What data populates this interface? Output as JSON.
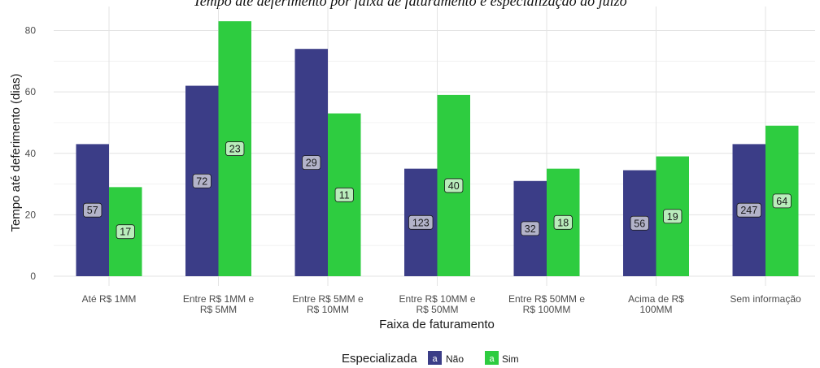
{
  "caption": "Tempo até deferimento por faixa de faturamento e especialização do juízo",
  "chart_data": {
    "type": "bar",
    "xlabel": "Faixa de faturamento",
    "ylabel": "Tempo até deferimento (dias)",
    "ylim": [
      0,
      85
    ],
    "yticks": [
      0,
      20,
      40,
      60,
      80
    ],
    "grid": true,
    "categories": [
      [
        "Até R$ 1MM"
      ],
      [
        "Entre R$ 1MM e",
        "R$ 5MM"
      ],
      [
        "Entre R$ 5MM e",
        "R$ 10MM"
      ],
      [
        "Entre R$ 10MM e",
        "R$ 50MM"
      ],
      [
        "Entre R$ 50MM e",
        "R$ 100MM"
      ],
      [
        "Acima de R$",
        "100MM"
      ],
      [
        "Sem informação"
      ]
    ],
    "series": [
      {
        "name": "Não",
        "color": "#3b3d87",
        "label_bg": "#b3b3c9",
        "values": [
          43,
          62,
          74,
          35,
          31,
          34.5,
          43
        ],
        "labels": [
          "57",
          "72",
          "29",
          "123",
          "32",
          "56",
          "247"
        ]
      },
      {
        "name": "Sim",
        "color": "#2ecc40",
        "label_bg": "#b9ecbb",
        "values": [
          29,
          83,
          53,
          59,
          35,
          39,
          49
        ],
        "labels": [
          "17",
          "23",
          "11",
          "40",
          "18",
          "19",
          "64"
        ]
      }
    ],
    "legend": {
      "title": "Especializada",
      "position": "bottom",
      "key_glyph": "a"
    }
  }
}
